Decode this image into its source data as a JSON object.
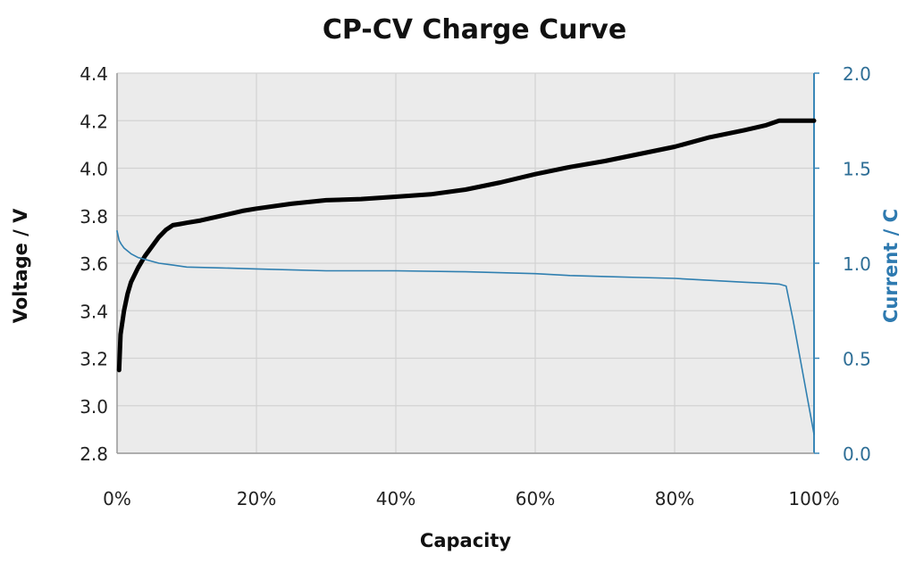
{
  "chart_data": {
    "type": "line",
    "title": "CP-CV Charge Curve",
    "xlabel": "Capacity",
    "ylabel": "Voltage / V",
    "y2label": "Current / C",
    "xlim": [
      0,
      100
    ],
    "ylim": [
      2.8,
      4.4
    ],
    "y2lim": [
      0.0,
      2.0
    ],
    "x_ticks": [
      "0%",
      "20%",
      "40%",
      "60%",
      "80%",
      "100%"
    ],
    "y_ticks": [
      "2.8",
      "3.0",
      "3.2",
      "3.4",
      "3.6",
      "3.8",
      "4.0",
      "4.2",
      "4.4"
    ],
    "y2_ticks": [
      "0.0",
      "0.5",
      "1.0",
      "1.5",
      "2.0"
    ],
    "grid": true,
    "plot_background": "#ebebeb",
    "series": [
      {
        "axis": "left",
        "color": "#000000",
        "x": [
          0.3,
          0.5,
          1,
          1.5,
          2,
          3,
          4,
          5,
          6,
          7,
          8,
          9,
          10,
          12,
          15,
          18,
          20,
          25,
          30,
          35,
          40,
          45,
          50,
          55,
          60,
          65,
          70,
          75,
          80,
          85,
          90,
          93,
          95,
          96,
          98,
          100
        ],
        "y": [
          3.15,
          3.3,
          3.4,
          3.47,
          3.52,
          3.58,
          3.63,
          3.67,
          3.71,
          3.74,
          3.76,
          3.765,
          3.77,
          3.78,
          3.8,
          3.82,
          3.83,
          3.85,
          3.865,
          3.87,
          3.88,
          3.89,
          3.91,
          3.94,
          3.975,
          4.005,
          4.03,
          4.06,
          4.09,
          4.13,
          4.16,
          4.18,
          4.2,
          4.2,
          4.2,
          4.2
        ]
      },
      {
        "axis": "right",
        "color": "#2f7fb0",
        "x": [
          0,
          0.3,
          0.6,
          1,
          2,
          3,
          4,
          5,
          6,
          8,
          10,
          15,
          20,
          30,
          40,
          50,
          60,
          65,
          70,
          75,
          80,
          85,
          90,
          93,
          95,
          96,
          97,
          98,
          99,
          100
        ],
        "y": [
          1.17,
          1.12,
          1.1,
          1.08,
          1.05,
          1.03,
          1.02,
          1.01,
          1.0,
          0.99,
          0.98,
          0.975,
          0.97,
          0.96,
          0.96,
          0.955,
          0.945,
          0.935,
          0.93,
          0.925,
          0.92,
          0.91,
          0.9,
          0.895,
          0.89,
          0.88,
          0.7,
          0.5,
          0.3,
          0.1
        ]
      }
    ]
  }
}
